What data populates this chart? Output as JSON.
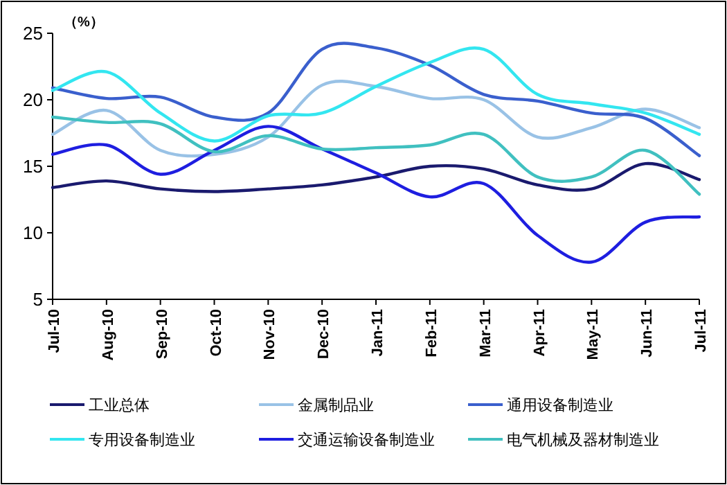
{
  "chart_data": {
    "type": "line",
    "ylabel": "（%）",
    "categories": [
      "Jul-10",
      "Aug-10",
      "Sep-10",
      "Oct-10",
      "Nov-10",
      "Dec-10",
      "Jan-11",
      "Feb-11",
      "Mar-11",
      "Apr-11",
      "May-11",
      "Jun-11",
      "Jul-11"
    ],
    "ylim": [
      5,
      25
    ],
    "yticks": [
      5,
      10,
      15,
      20,
      25
    ],
    "grid": false,
    "legend": "bottom",
    "marker": "none",
    "line_style": "solid",
    "series": [
      {
        "name": "工业总体",
        "color": "#1a1a6e",
        "values": [
          13.4,
          13.9,
          13.3,
          13.1,
          13.3,
          13.6,
          14.2,
          15.0,
          14.8,
          13.6,
          13.3,
          15.2,
          14.0
        ]
      },
      {
        "name": "金属制品业",
        "color": "#99c2e6",
        "values": [
          17.4,
          19.2,
          16.2,
          15.9,
          17.2,
          21.1,
          21.0,
          20.1,
          20.0,
          17.2,
          17.9,
          19.3,
          17.9
        ]
      },
      {
        "name": "通用设备制造业",
        "color": "#3a5fcd",
        "values": [
          20.9,
          20.1,
          20.2,
          18.7,
          19.0,
          23.8,
          23.9,
          22.6,
          20.4,
          19.9,
          19.0,
          18.6,
          15.8
        ]
      },
      {
        "name": "专用设备制造业",
        "color": "#33e6f0",
        "values": [
          20.7,
          22.1,
          19.0,
          16.9,
          18.8,
          19.0,
          21.0,
          22.8,
          23.8,
          20.4,
          19.7,
          19.0,
          17.4
        ]
      },
      {
        "name": "交通运输设备制造业",
        "color": "#1e1ee0",
        "values": [
          15.9,
          16.6,
          14.4,
          16.2,
          18.0,
          16.3,
          14.5,
          12.7,
          13.7,
          9.8,
          7.8,
          10.8,
          11.2
        ]
      },
      {
        "name": "电气机械及器材制造业",
        "color": "#40c0c0",
        "values": [
          18.7,
          18.3,
          18.2,
          16.1,
          17.3,
          16.3,
          16.4,
          16.6,
          17.4,
          14.2,
          14.2,
          16.2,
          12.9
        ]
      }
    ]
  }
}
